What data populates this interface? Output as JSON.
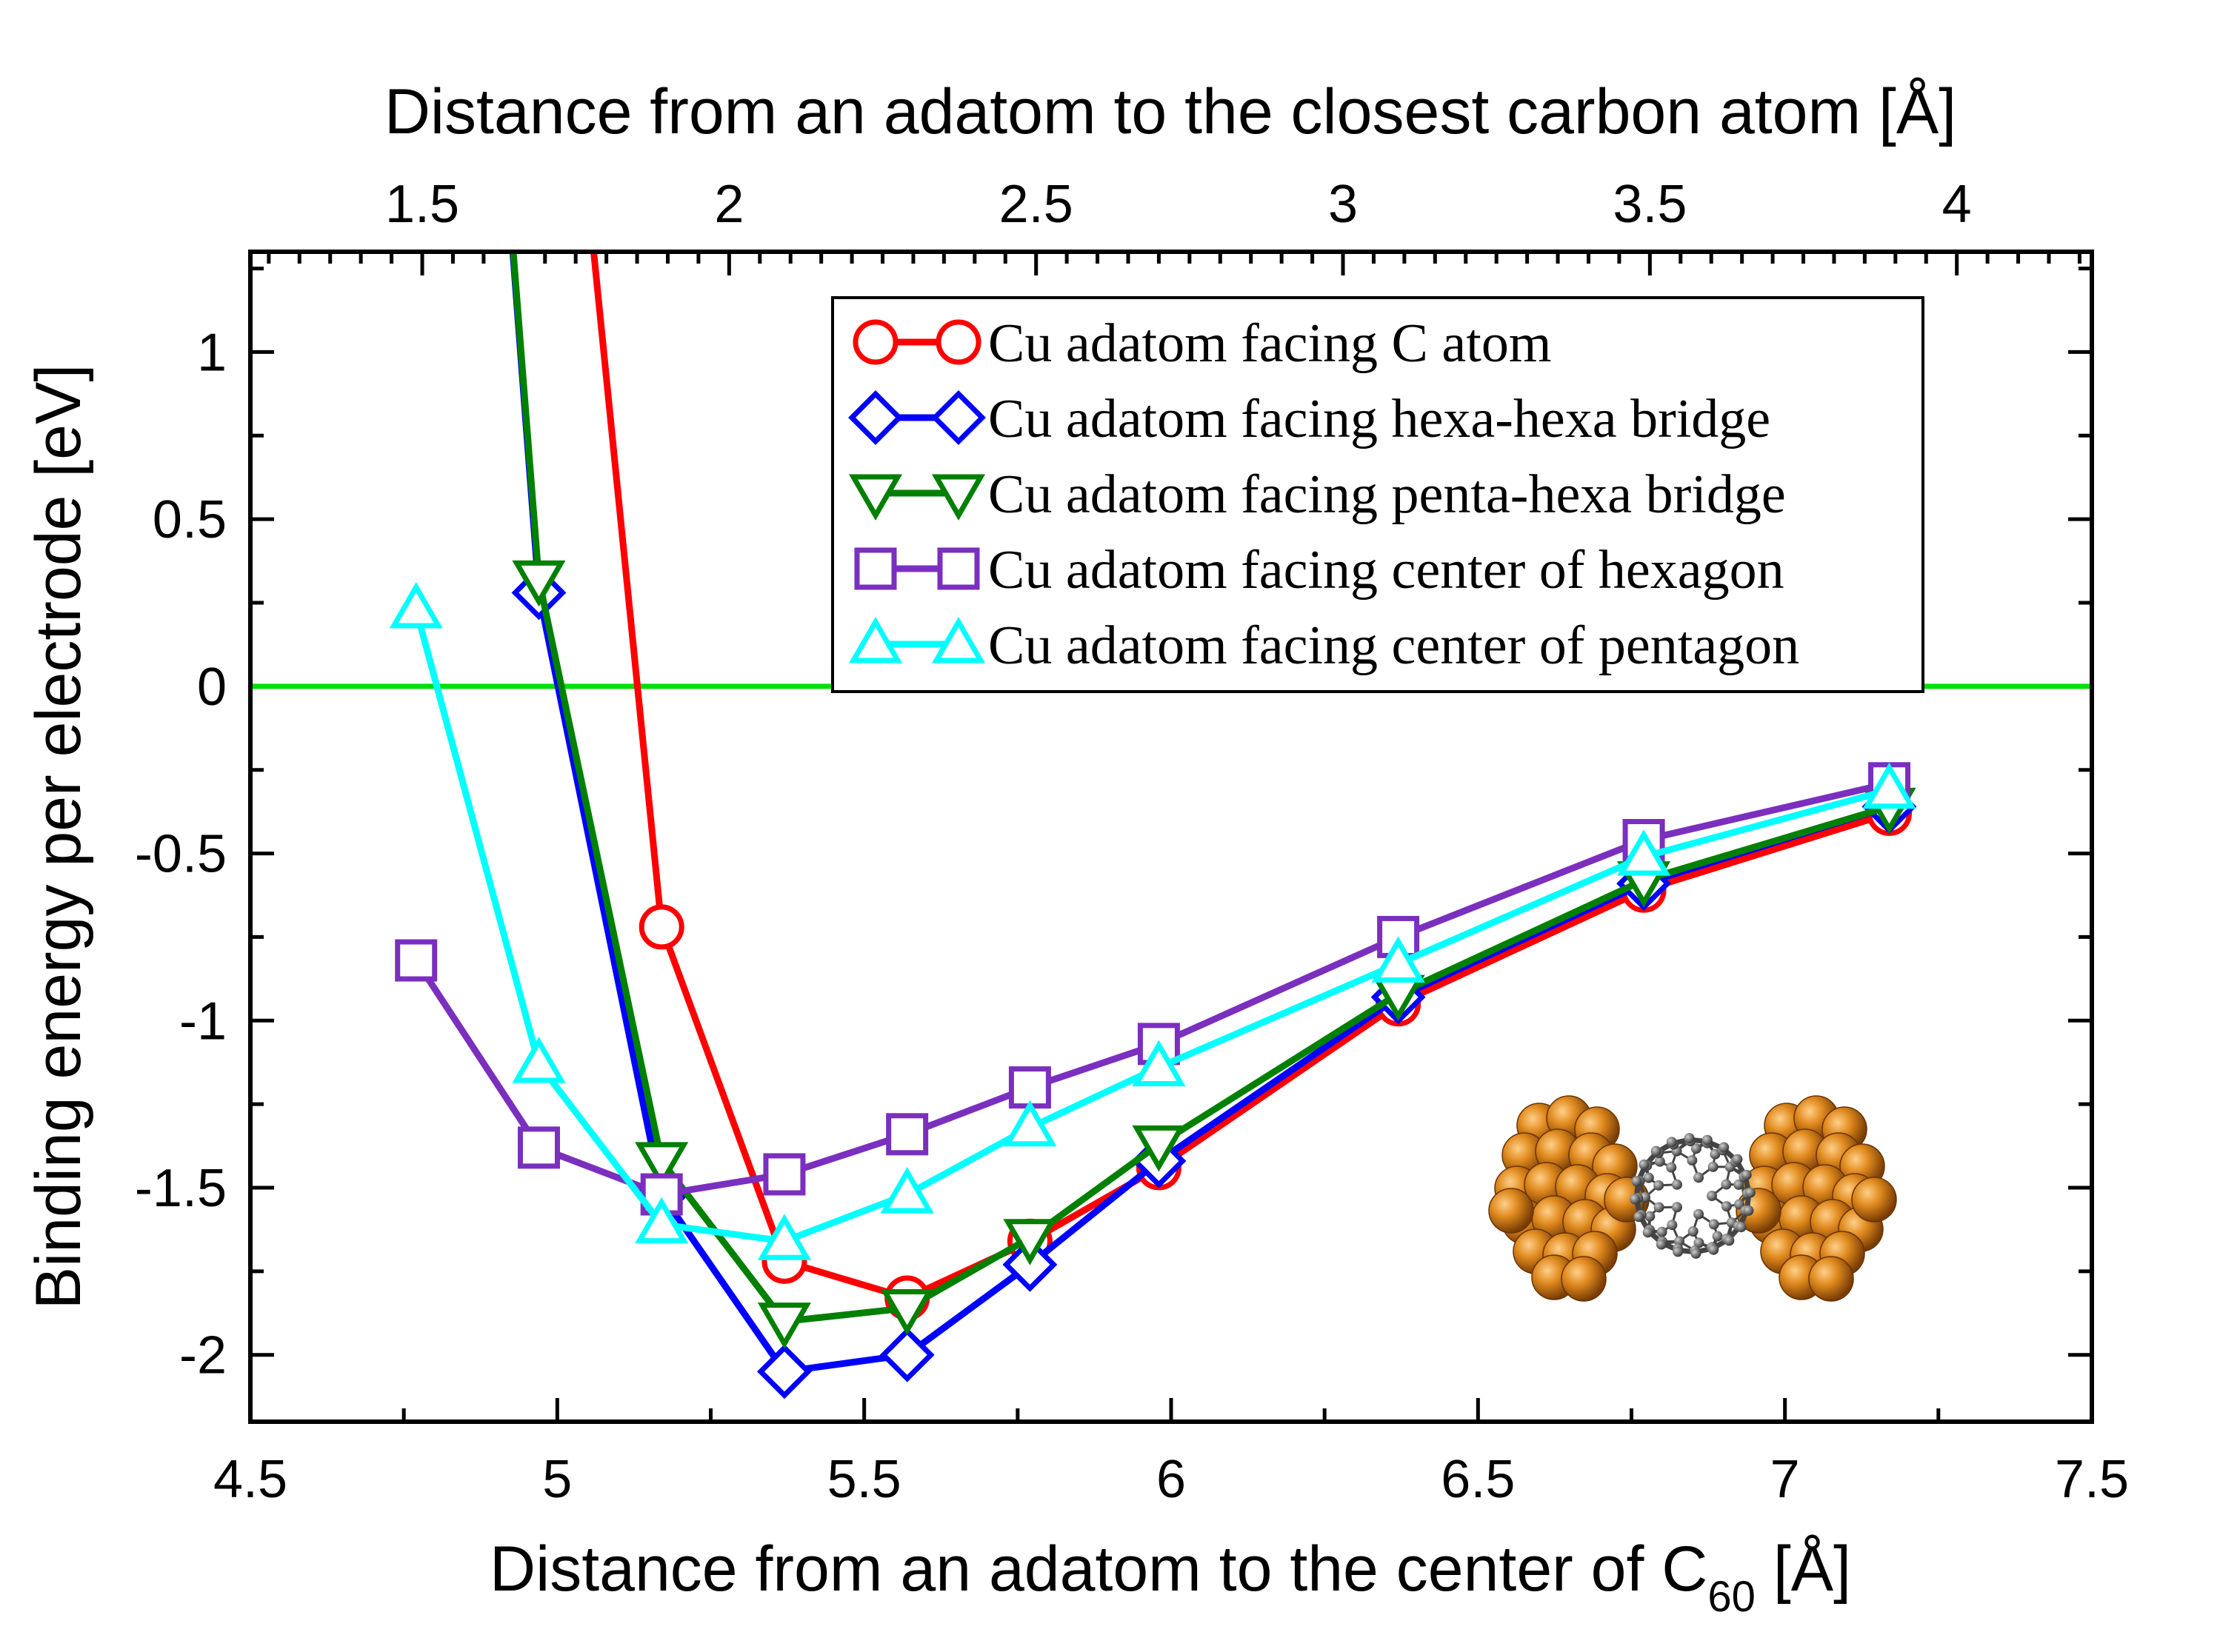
{
  "chart_data": {
    "type": "line",
    "xlabel_main": "Distance from an adatom to the center of C",
    "xlabel_sub": "60",
    "xlabel_unit": " [Å]",
    "x2label": "Distance from an adatom to the closest carbon atom [Å]",
    "ylabel": "Binding energy per electrode [eV]",
    "xlim": [
      4.5,
      7.5
    ],
    "ylim": [
      -2.2,
      1.3
    ],
    "x2lim": [
      1.22,
      4.22
    ],
    "xticks": [
      4.5,
      5,
      5.5,
      6,
      6.5,
      7,
      7.5
    ],
    "xtick_labels": [
      "4.5",
      "5",
      "5.5",
      "6",
      "6.5",
      "7",
      "7.5"
    ],
    "x2ticks": [
      1.5,
      2,
      2.5,
      3,
      3.5,
      4
    ],
    "x2tick_labels": [
      "1.5",
      "2",
      "2.5",
      "3",
      "3.5",
      "4"
    ],
    "yticks": [
      1,
      0.5,
      0,
      -0.5,
      -1,
      -1.5,
      -2
    ],
    "ytick_labels": [
      "1",
      "0.5",
      "0",
      "-0.5",
      "-1",
      "-1.5",
      "-2"
    ],
    "reference_line": {
      "y": 0,
      "color": "#00e000"
    },
    "legend_position": "top-right",
    "series": [
      {
        "name": "Cu adatom facing C atom",
        "color": "#ff0000",
        "marker": "circle",
        "points": [
          [
            5.01,
            2.2
          ],
          [
            5.17,
            -0.72
          ],
          [
            5.37,
            -1.72
          ],
          [
            5.57,
            -1.83
          ],
          [
            5.77,
            -1.66
          ],
          [
            5.98,
            -1.44
          ],
          [
            6.37,
            -0.95
          ],
          [
            6.77,
            -0.61
          ],
          [
            7.17,
            -0.38
          ]
        ],
        "marker_from": 1
      },
      {
        "name": "Cu adatom facing hexa-hexa bridge",
        "color": "#0000ff",
        "marker": "diamond",
        "points": [
          [
            4.89,
            2.2
          ],
          [
            4.97,
            0.28
          ],
          [
            5.17,
            -1.52
          ],
          [
            5.37,
            -2.05
          ],
          [
            5.57,
            -2.0
          ],
          [
            5.77,
            -1.73
          ],
          [
            5.98,
            -1.42
          ],
          [
            6.37,
            -0.93
          ],
          [
            6.77,
            -0.59
          ],
          [
            7.17,
            -0.36
          ]
        ],
        "marker_from": 1
      },
      {
        "name": "Cu adatom facing penta-hexa bridge",
        "color": "#008000",
        "marker": "triangle-down",
        "points": [
          [
            4.89,
            2.2
          ],
          [
            4.97,
            0.32
          ],
          [
            5.17,
            -1.42
          ],
          [
            5.37,
            -1.9
          ],
          [
            5.57,
            -1.86
          ],
          [
            5.77,
            -1.65
          ],
          [
            5.98,
            -1.37
          ],
          [
            6.37,
            -0.92
          ],
          [
            6.77,
            -0.58
          ],
          [
            7.17,
            -0.36
          ]
        ],
        "marker_from": 1
      },
      {
        "name": "Cu adatom facing center of hexagon",
        "color": "#7b2fbe",
        "marker": "square",
        "points": [
          [
            4.77,
            -0.82
          ],
          [
            4.97,
            -1.38
          ],
          [
            5.17,
            -1.52
          ],
          [
            5.37,
            -1.46
          ],
          [
            5.57,
            -1.34
          ],
          [
            5.77,
            -1.2
          ],
          [
            5.98,
            -1.07
          ],
          [
            6.37,
            -0.75
          ],
          [
            6.77,
            -0.46
          ],
          [
            7.17,
            -0.29
          ]
        ],
        "marker_from": 0
      },
      {
        "name": "Cu adatom facing center of pentagon",
        "color": "#00ffff",
        "marker": "triangle-up",
        "points": [
          [
            4.77,
            0.23
          ],
          [
            4.97,
            -1.13
          ],
          [
            5.17,
            -1.61
          ],
          [
            5.37,
            -1.66
          ],
          [
            5.57,
            -1.52
          ],
          [
            5.77,
            -1.32
          ],
          [
            5.98,
            -1.14
          ],
          [
            6.37,
            -0.83
          ],
          [
            6.77,
            -0.51
          ],
          [
            7.17,
            -0.31
          ]
        ],
        "marker_from": 0
      }
    ]
  },
  "inset": {
    "electrode_color": "#d07a10",
    "molecule_color": "#555555"
  }
}
